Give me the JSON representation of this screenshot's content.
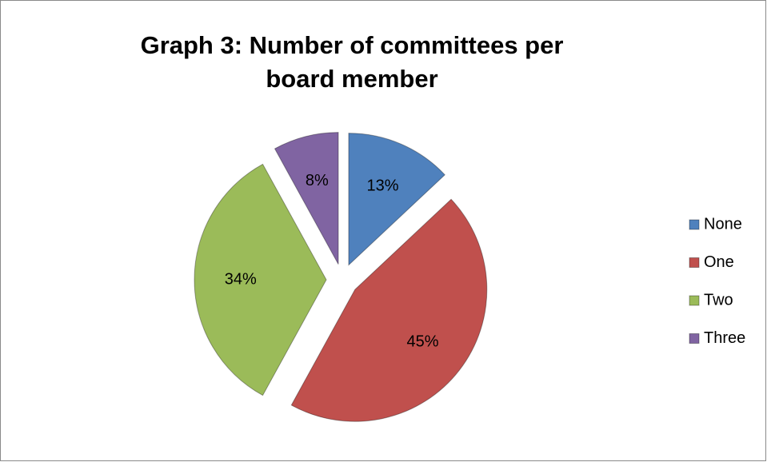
{
  "chart_data": {
    "type": "pie",
    "title": "Graph 3: Number of committees per board member",
    "categories": [
      "None",
      "One",
      "Two",
      "Three"
    ],
    "values": [
      13,
      45,
      34,
      8
    ],
    "value_labels": [
      "13%",
      "45%",
      "34%",
      "8%"
    ],
    "colors": [
      "#4f81bd",
      "#c0504d",
      "#9bbb59",
      "#8064a2"
    ],
    "legend": "right"
  }
}
